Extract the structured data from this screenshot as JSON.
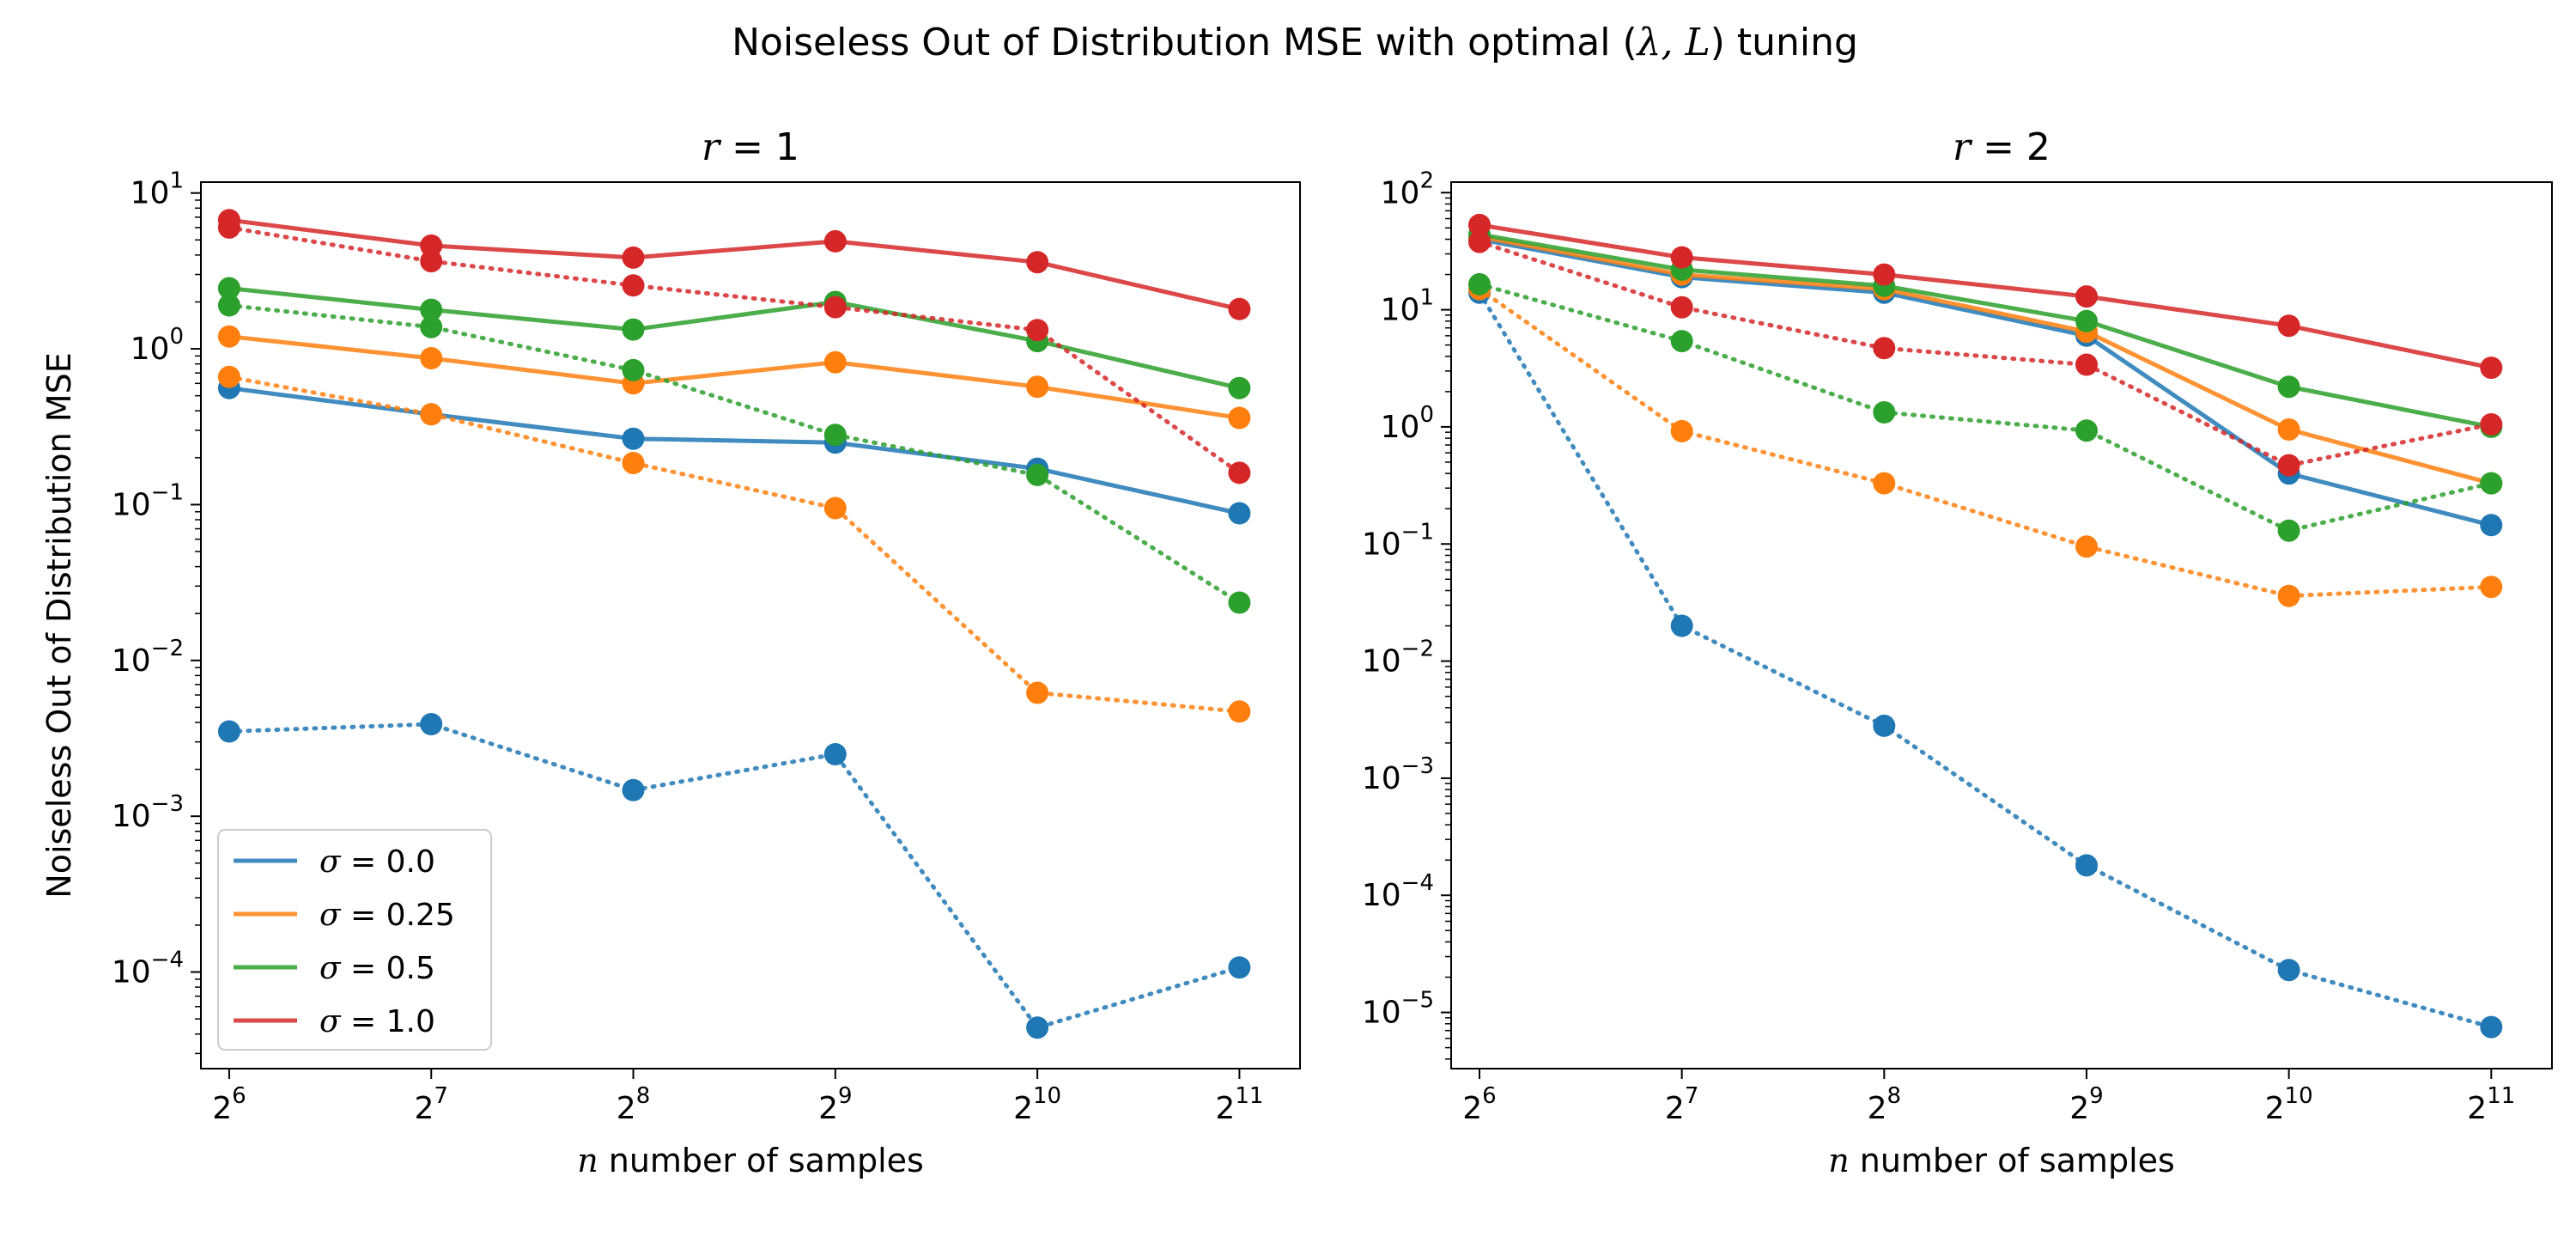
{
  "figure": {
    "suptitle_prefix": "Noiseless Out of Distribution MSE with optimal (",
    "suptitle_math": "λ, L",
    "suptitle_suffix": ") tuning"
  },
  "legend": {
    "placement": "lower-left",
    "entries": [
      {
        "symbol": "σ",
        "label": " = 0.0",
        "color": "#1f77b4"
      },
      {
        "symbol": "σ",
        "label": " = 0.25",
        "color": "#ff7f0e"
      },
      {
        "symbol": "σ",
        "label": " = 0.5",
        "color": "#2ca02c"
      },
      {
        "symbol": "σ",
        "label": " = 1.0",
        "color": "#d62728"
      }
    ]
  },
  "chart_data": [
    {
      "type": "line",
      "title_var": "r",
      "title_value": " = 1",
      "xlabel_var": "n",
      "xlabel_rest": " number of samples",
      "ylabel": "Noiseless Out of Distribution MSE",
      "xscale": "log2",
      "yscale": "log10",
      "x": [
        6,
        7,
        8,
        9,
        10,
        11
      ],
      "xlim": [
        5.86,
        11.3
      ],
      "ylim_exp": [
        -4.62,
        1.07
      ],
      "x_ticks": [
        {
          "base": "2",
          "exp": "6"
        },
        {
          "base": "2",
          "exp": "7"
        },
        {
          "base": "2",
          "exp": "8"
        },
        {
          "base": "2",
          "exp": "9"
        },
        {
          "base": "2",
          "exp": "10"
        },
        {
          "base": "2",
          "exp": "11"
        }
      ],
      "y_ticks": [
        {
          "base": "10",
          "exp": "−4"
        },
        {
          "base": "10",
          "exp": "−3"
        },
        {
          "base": "10",
          "exp": "−2"
        },
        {
          "base": "10",
          "exp": "−1"
        },
        {
          "base": "10",
          "exp": "0"
        },
        {
          "base": "10",
          "exp": "1"
        }
      ],
      "y_tick_exps": [
        -4,
        -3,
        -2,
        -1,
        0,
        1
      ],
      "grid": false,
      "series": [
        {
          "sigma": 0.0,
          "style": "solid",
          "color": "#1f77b4",
          "values": [
            0.56,
            0.38,
            0.265,
            0.25,
            0.17,
            0.088
          ]
        },
        {
          "sigma": 0.25,
          "style": "solid",
          "color": "#ff7f0e",
          "values": [
            1.2,
            0.87,
            0.6,
            0.82,
            0.57,
            0.36
          ]
        },
        {
          "sigma": 0.5,
          "style": "solid",
          "color": "#2ca02c",
          "values": [
            2.45,
            1.78,
            1.33,
            2.0,
            1.12,
            0.56
          ]
        },
        {
          "sigma": 1.0,
          "style": "solid",
          "color": "#d62728",
          "values": [
            6.7,
            4.6,
            3.85,
            4.9,
            3.6,
            1.8
          ]
        },
        {
          "sigma": 0.0,
          "style": "dotted",
          "color": "#1f77b4",
          "values": [
            0.0035,
            0.0039,
            0.00147,
            0.0025,
            4.4e-05,
            0.000107
          ]
        },
        {
          "sigma": 0.25,
          "style": "dotted",
          "color": "#ff7f0e",
          "values": [
            0.66,
            0.38,
            0.185,
            0.095,
            0.0062,
            0.0047
          ]
        },
        {
          "sigma": 0.5,
          "style": "dotted",
          "color": "#2ca02c",
          "values": [
            1.9,
            1.38,
            0.73,
            0.28,
            0.155,
            0.0235
          ]
        },
        {
          "sigma": 1.0,
          "style": "dotted",
          "color": "#d62728",
          "values": [
            6.0,
            3.65,
            2.55,
            1.85,
            1.32,
            0.16
          ]
        }
      ]
    },
    {
      "type": "line",
      "title_var": "r",
      "title_value": " = 2",
      "xlabel_var": "n",
      "xlabel_rest": " number of samples",
      "ylabel": "",
      "xscale": "log2",
      "yscale": "log10",
      "x": [
        6,
        7,
        8,
        9,
        10,
        11
      ],
      "xlim": [
        5.86,
        11.3
      ],
      "ylim_exp": [
        -5.48,
        2.09
      ],
      "x_ticks": [
        {
          "base": "2",
          "exp": "6"
        },
        {
          "base": "2",
          "exp": "7"
        },
        {
          "base": "2",
          "exp": "8"
        },
        {
          "base": "2",
          "exp": "9"
        },
        {
          "base": "2",
          "exp": "10"
        },
        {
          "base": "2",
          "exp": "11"
        }
      ],
      "y_ticks": [
        {
          "base": "10",
          "exp": "−5"
        },
        {
          "base": "10",
          "exp": "−4"
        },
        {
          "base": "10",
          "exp": "−3"
        },
        {
          "base": "10",
          "exp": "−2"
        },
        {
          "base": "10",
          "exp": "−1"
        },
        {
          "base": "10",
          "exp": "0"
        },
        {
          "base": "10",
          "exp": "1"
        },
        {
          "base": "10",
          "exp": "2"
        }
      ],
      "y_tick_exps": [
        -5,
        -4,
        -3,
        -2,
        -1,
        0,
        1,
        2
      ],
      "grid": false,
      "series": [
        {
          "sigma": 0.0,
          "style": "solid",
          "color": "#1f77b4",
          "values": [
            40,
            19,
            14,
            6.0,
            0.4,
            0.145
          ]
        },
        {
          "sigma": 0.25,
          "style": "solid",
          "color": "#ff7f0e",
          "values": [
            42,
            20,
            15,
            6.5,
            0.95,
            0.33
          ]
        },
        {
          "sigma": 0.5,
          "style": "solid",
          "color": "#2ca02c",
          "values": [
            44,
            22,
            16,
            8.0,
            2.2,
            1.0
          ]
        },
        {
          "sigma": 1.0,
          "style": "solid",
          "color": "#d62728",
          "values": [
            53,
            28,
            20,
            13,
            7.3,
            3.2
          ]
        },
        {
          "sigma": 0.0,
          "style": "dotted",
          "color": "#1f77b4",
          "values": [
            14,
            0.02,
            0.0028,
            0.00018,
            2.3e-05,
            7.5e-06
          ]
        },
        {
          "sigma": 0.25,
          "style": "dotted",
          "color": "#ff7f0e",
          "values": [
            15,
            0.92,
            0.33,
            0.095,
            0.036,
            0.043
          ]
        },
        {
          "sigma": 0.5,
          "style": "dotted",
          "color": "#2ca02c",
          "values": [
            16.5,
            5.4,
            1.33,
            0.93,
            0.13,
            0.33
          ]
        },
        {
          "sigma": 1.0,
          "style": "dotted",
          "color": "#d62728",
          "values": [
            38,
            10.5,
            4.7,
            3.4,
            0.47,
            1.05
          ]
        }
      ]
    }
  ]
}
